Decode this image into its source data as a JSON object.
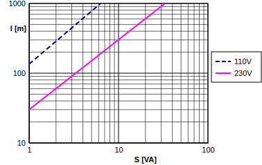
{
  "chart_data": {
    "type": "line",
    "x_label": "S [VA]",
    "y_label": "l [m]",
    "log": true,
    "grid": true,
    "legend": "right",
    "xlim": [
      1,
      100
    ],
    "xticks": [
      1,
      10,
      100
    ],
    "ylim": [
      10,
      1000
    ],
    "yticks": [
      10,
      100,
      1000
    ],
    "series": [
      {
        "name": "110V",
        "color": "#000080",
        "line_style": "dashed",
        "x": [
          1,
          6.3
        ],
        "values": [
          135,
          1000
        ]
      },
      {
        "name": "230V",
        "color": "#ff00ff",
        "line_style": "solid",
        "x": [
          1,
          33
        ],
        "values": [
          30,
          1000
        ]
      }
    ]
  }
}
